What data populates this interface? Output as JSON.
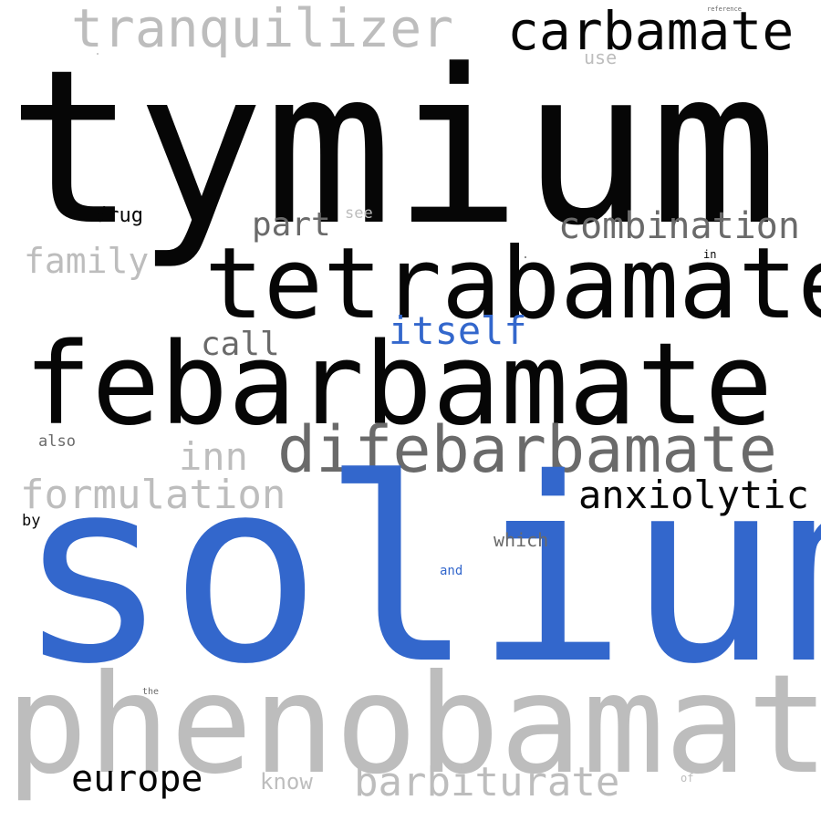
{
  "colors": {
    "black": "#060606",
    "dark_gray": "#6a6a6a",
    "light_gray": "#bdbdbd",
    "blue": "#3367cc"
  },
  "words": {
    "tymium": {
      "text": "tymium",
      "color": "#060606"
    },
    "solium": {
      "text": "solium",
      "color": "#3367cc"
    },
    "phenobamate": {
      "text": "phenobamate",
      "color": "#bdbdbd"
    },
    "febarbamate": {
      "text": "febarbamate",
      "color": "#060606"
    },
    "tetrabamate": {
      "text": "tetrabamate",
      "color": "#060606"
    },
    "difebarbamate": {
      "text": "difebarbamate",
      "color": "#6a6a6a"
    },
    "tranquilizer": {
      "text": "tranquilizer",
      "color": "#bdbdbd"
    },
    "carbamate": {
      "text": "carbamate",
      "color": "#060606"
    },
    "combination": {
      "text": "combination",
      "color": "#6a6a6a"
    },
    "anxiolytic": {
      "text": "anxiolytic",
      "color": "#060606"
    },
    "formulation": {
      "text": "formulation",
      "color": "#bdbdbd"
    },
    "barbiturate": {
      "text": "barbiturate",
      "color": "#bdbdbd"
    },
    "itself": {
      "text": "itself",
      "color": "#3367cc"
    },
    "europe": {
      "text": "europe",
      "color": "#060606"
    },
    "inn": {
      "text": "inn",
      "color": "#bdbdbd"
    },
    "part": {
      "text": "part",
      "color": "#6a6a6a"
    },
    "family": {
      "text": "family",
      "color": "#bdbdbd"
    },
    "call": {
      "text": "call",
      "color": "#6a6a6a"
    },
    "know": {
      "text": "know",
      "color": "#bdbdbd"
    },
    "drug": {
      "text": "drug",
      "color": "#060606"
    },
    "which": {
      "text": "which",
      "color": "#6a6a6a"
    },
    "see": {
      "text": "see",
      "color": "#bdbdbd"
    },
    "use": {
      "text": "use",
      "color": "#bdbdbd"
    },
    "by": {
      "text": "by",
      "color": "#060606"
    },
    "also": {
      "text": "also",
      "color": "#6a6a6a"
    },
    "and": {
      "text": "and",
      "color": "#3367cc"
    },
    "of": {
      "text": "of",
      "color": "#bdbdbd"
    },
    "in": {
      "text": "in",
      "color": "#060606"
    },
    "the": {
      "text": "the",
      "color": "#6a6a6a"
    },
    "reference": {
      "text": "reference",
      "color": "#6a6a6a"
    }
  },
  "specks": {
    "speck_a": {
      "color": "#bdbdbd"
    },
    "speck_b": {
      "color": "#6a6a6a"
    }
  }
}
